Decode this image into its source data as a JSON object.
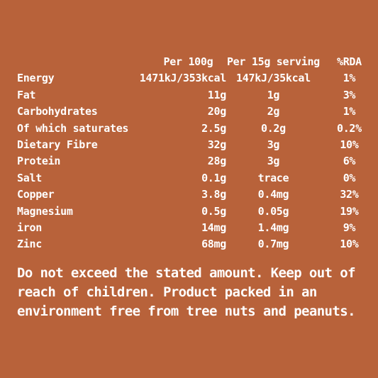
{
  "table": {
    "headers": {
      "nutrient": "",
      "per_100g": "Per 100g",
      "per_serving": "Per 15g serving",
      "rda": "%RDA"
    },
    "rows": [
      {
        "nutrient": "Energy",
        "per_100g": "1471kJ/353kcal",
        "per_serving": "147kJ/35kcal",
        "rda": "1%"
      },
      {
        "nutrient": "Fat",
        "per_100g": "11g",
        "per_serving": "1g",
        "rda": "3%"
      },
      {
        "nutrient": "Carbohydrates",
        "per_100g": "20g",
        "per_serving": "2g",
        "rda": "1%"
      },
      {
        "nutrient": "Of which saturates",
        "per_100g": "2.5g",
        "per_serving": "0.2g",
        "rda": "0.2%"
      },
      {
        "nutrient": "Dietary Fibre",
        "per_100g": "32g",
        "per_serving": "3g",
        "rda": "10%"
      },
      {
        "nutrient": "Protein",
        "per_100g": "28g",
        "per_serving": "3g",
        "rda": "6%"
      },
      {
        "nutrient": "Salt",
        "per_100g": "0.1g",
        "per_serving": "trace",
        "rda": "0%"
      },
      {
        "nutrient": "Copper",
        "per_100g": "3.8g",
        "per_serving": "0.4mg",
        "rda": "32%"
      },
      {
        "nutrient": "Magnesium",
        "per_100g": "0.5g",
        "per_serving": "0.05g",
        "rda": "19%"
      },
      {
        "nutrient": "iron",
        "per_100g": "14mg",
        "per_serving": "1.4mg",
        "rda": "9%"
      },
      {
        "nutrient": "Zinc",
        "per_100g": "68mg",
        "per_serving": "0.7mg",
        "rda": "10%"
      }
    ]
  },
  "warning": "Do not exceed the stated amount. Keep out of reach of children. Product packed in an environment free from tree nuts and peanuts.",
  "colors": {
    "background": "#B8623A",
    "text": "#FFFFFF"
  }
}
